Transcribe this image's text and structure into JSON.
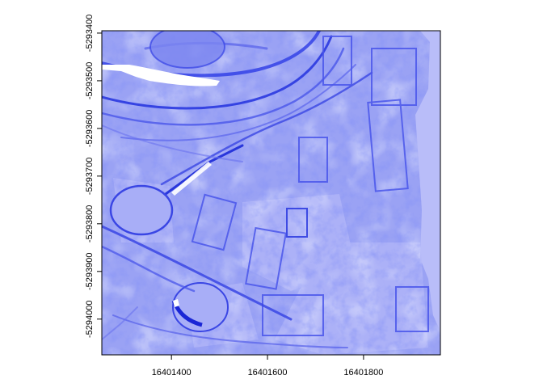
{
  "chart_data": {
    "type": "heatmap",
    "title": "",
    "xlabel": "",
    "ylabel": "",
    "xlim": [
      16401255,
      16401960
    ],
    "ylim": [
      -5294075,
      -5293395
    ],
    "x_ticks": [
      {
        "value": 16401400,
        "label": "16401400"
      },
      {
        "value": 16401600,
        "label": "16401600"
      },
      {
        "value": 16401800,
        "label": "16401800"
      }
    ],
    "y_ticks": [
      {
        "value": -5293400,
        "label": "-5293400"
      },
      {
        "value": -5293500,
        "label": "-5293500"
      },
      {
        "value": -5293600,
        "label": "-5293600"
      },
      {
        "value": -5293700,
        "label": "-5293700"
      },
      {
        "value": -5293800,
        "label": "-5293800"
      },
      {
        "value": -5293900,
        "label": "-5293900"
      },
      {
        "value": -5294000,
        "label": "-5294000"
      }
    ],
    "grid": false,
    "legend": "none",
    "colors": {
      "background_fill": "#b9bdf9",
      "raster_base": "#9aa2f4",
      "raster_light": "#c4c8fb",
      "raster_dark": "#2a38e0",
      "nodata": "#ffffff"
    }
  }
}
